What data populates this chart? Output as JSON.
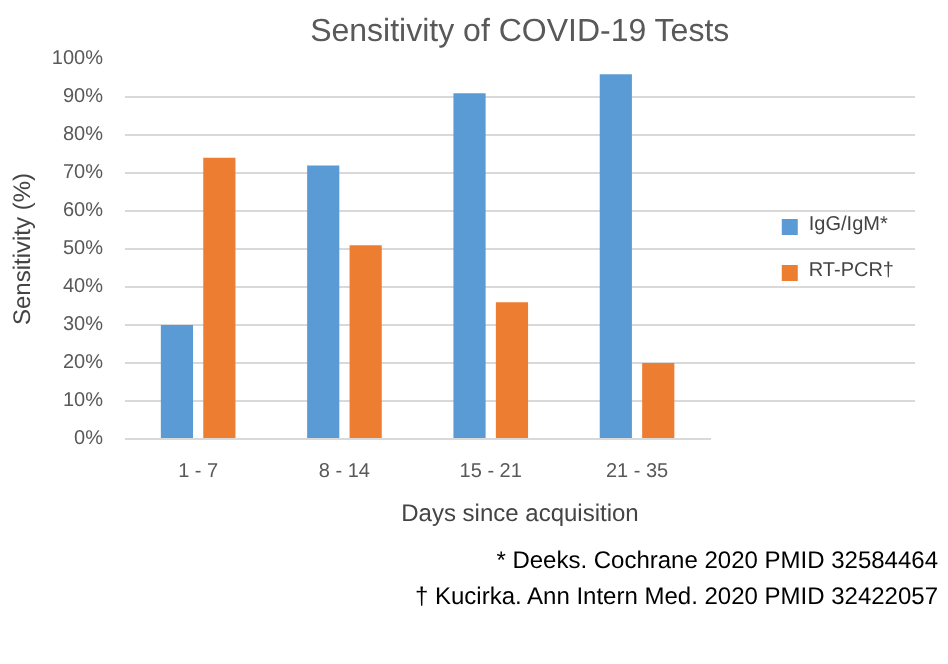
{
  "chart_data": {
    "type": "bar",
    "title": "Sensitivity of COVID-19 Tests",
    "xlabel": "Days since acquisition",
    "ylabel": "Sensitivity (%)",
    "categories": [
      "1 - 7",
      "8 - 14",
      "15 - 21",
      "21 - 35"
    ],
    "series": [
      {
        "name": "IgG/IgM*",
        "color": "#5b9bd5",
        "values": [
          30,
          72,
          91,
          96
        ]
      },
      {
        "name": "RT-PCR†",
        "color": "#ed7d31",
        "values": [
          74,
          51,
          36,
          20
        ]
      }
    ],
    "ylim": [
      0,
      100
    ],
    "yticks": [
      {
        "value": 0,
        "label": "0%"
      },
      {
        "value": 10,
        "label": "10%"
      },
      {
        "value": 20,
        "label": "20%"
      },
      {
        "value": 30,
        "label": "30%"
      },
      {
        "value": 40,
        "label": "40%"
      },
      {
        "value": 50,
        "label": "50%"
      },
      {
        "value": 60,
        "label": "60%"
      },
      {
        "value": 70,
        "label": "70%"
      },
      {
        "value": 80,
        "label": "80%"
      },
      {
        "value": 90,
        "label": "90%"
      },
      {
        "value": 100,
        "label": "100%"
      }
    ],
    "grid": "y",
    "legend": "right",
    "annotations": [
      "* Deeks. Cochrane 2020 PMID 32584464",
      "† Kucirka. Ann Intern Med. 2020 PMID 32422057"
    ]
  }
}
